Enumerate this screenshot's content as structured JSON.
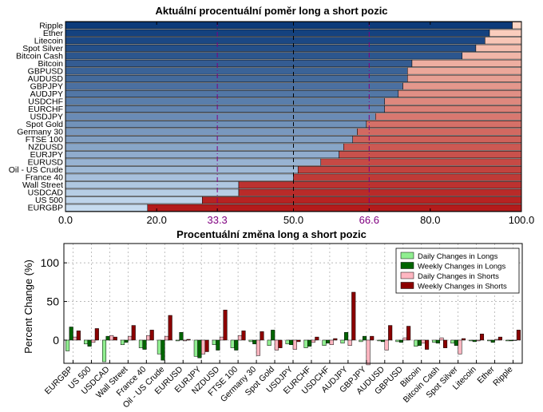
{
  "colors": {
    "long_dark": "#0d3b7a",
    "long_light": "#c6dbef",
    "short_light": "#fdd5c4",
    "short_dark": "#b31b1b",
    "dashed_black": "#000000",
    "dashed_purple": "#800080",
    "daily_longs": "#90ee90",
    "weekly_longs": "#006400",
    "daily_shorts": "#ffb6c1",
    "weekly_shorts": "#8b0000",
    "grid": "#b0b0b0"
  },
  "chart_data": [
    {
      "type": "bar",
      "orientation": "horizontal-stacked",
      "title": "Aktuální procentuální poměr long a short pozic",
      "categories": [
        "Ripple",
        "Ether",
        "Litecoin",
        "Spot Silver",
        "Bitcoin Cash",
        "Bitcoin",
        "GBPUSD",
        "AUDUSD",
        "GBPJPY",
        "AUDJPY",
        "USDCHF",
        "EURCHF",
        "USDJPY",
        "Spot Gold",
        "Germany 30",
        "FTSE 100",
        "NZDUSD",
        "EURJPY",
        "EURUSD",
        "Oil - US Crude",
        "France 40",
        "Wall Street",
        "USDCAD",
        "US 500",
        "EURGBP"
      ],
      "series": [
        {
          "values": [
            98,
            93,
            92,
            90,
            87,
            76,
            75,
            75,
            74,
            73,
            70,
            70,
            68,
            66,
            64,
            63,
            61,
            60,
            56,
            51,
            50,
            38,
            38,
            30,
            18
          ]
        },
        {
          "values": [
            2,
            7,
            8,
            10,
            13,
            24,
            25,
            25,
            26,
            27,
            30,
            30,
            32,
            34,
            36,
            37,
            39,
            40,
            44,
            49,
            50,
            62,
            62,
            70,
            82
          ]
        }
      ],
      "xlim": [
        0,
        100
      ],
      "xticks": [
        "0.0",
        "20.0",
        "33.3",
        "50.0",
        "66.6",
        "80.0",
        "100.0"
      ],
      "reference_lines": [
        {
          "value": 33.3,
          "style": "dash-dot",
          "color": "purple"
        },
        {
          "value": 50.0,
          "style": "dashed",
          "color": "black"
        },
        {
          "value": 66.6,
          "style": "dash-dot",
          "color": "purple"
        }
      ]
    },
    {
      "type": "bar",
      "orientation": "vertical-grouped",
      "title": "Procentuální změna long a short pozic",
      "ylabel": "Percent Change (%)",
      "ylim": [
        -30,
        125
      ],
      "yticks": [
        "0",
        "50",
        "100"
      ],
      "grid": true,
      "legend_position": "top-right",
      "categories": [
        "EURGBP",
        "US 500",
        "USDCAD",
        "Wall Street",
        "France 40",
        "Oil - US Crude",
        "EURUSD",
        "EURJPY",
        "NZDUSD",
        "FTSE 100",
        "Germany 30",
        "Spot Gold",
        "USDJPY",
        "EURCHF",
        "USDCHF",
        "AUDJPY",
        "GBPJPY",
        "AUDUSD",
        "GBPUSD",
        "Bitcoin",
        "Bitcoin Cash",
        "Spot Silver",
        "Litecoin",
        "Ether",
        "Ripple"
      ],
      "series": [
        {
          "name": "Daily Changes in Longs",
          "values": [
            -14,
            -5,
            -28,
            -6,
            -10,
            -18,
            -1,
            -21,
            -6,
            -10,
            -2,
            -7,
            -5,
            -10,
            -7,
            -4,
            -2,
            -1,
            -2,
            -8,
            -3,
            -4,
            -1,
            -1,
            -1
          ]
        },
        {
          "name": "Weekly Changes in Longs",
          "values": [
            17,
            -8,
            5,
            -3,
            -12,
            -26,
            10,
            -23,
            -13,
            -13,
            -5,
            13,
            -6,
            -8,
            -4,
            10,
            5,
            -2,
            -3,
            -7,
            -4,
            -7,
            -2,
            -3,
            -1
          ]
        },
        {
          "name": "Daily Changes in Shorts",
          "values": [
            4,
            -3,
            6,
            5,
            6,
            5,
            -1,
            -18,
            4,
            6,
            -20,
            -13,
            -12,
            -3,
            -6,
            -7,
            -32,
            -13,
            3,
            -4,
            3,
            -18,
            -1,
            1,
            0
          ]
        },
        {
          "name": "Weekly Changes in Shorts",
          "values": [
            12,
            15,
            4,
            19,
            13,
            32,
            1,
            -15,
            39,
            12,
            11,
            -10,
            -2,
            4,
            2,
            62,
            5,
            19,
            18,
            -12,
            -10,
            2,
            8,
            4,
            13
          ]
        }
      ]
    }
  ]
}
